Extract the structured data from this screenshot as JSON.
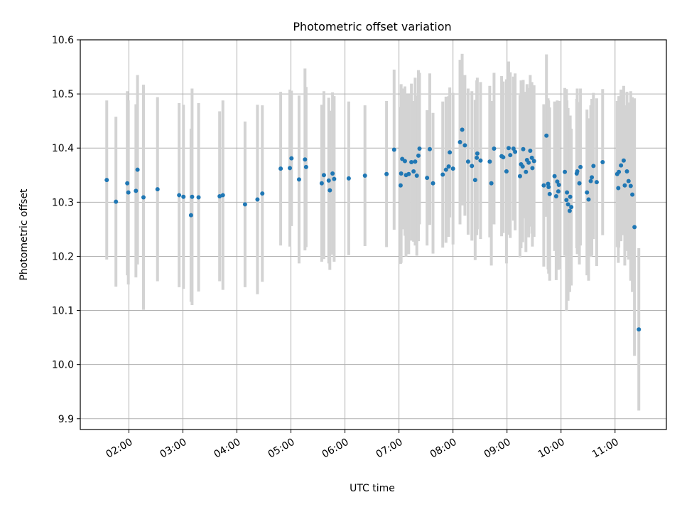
{
  "chart_data": {
    "type": "scatter",
    "title": "Photometric offset variation",
    "xlabel": "UTC time",
    "ylabel": "Photometric offset",
    "x_unit": "hours UTC",
    "xlim": [
      1.1,
      11.95
    ],
    "ylim": [
      9.88,
      10.6
    ],
    "grid": true,
    "legend": "none",
    "colors": {
      "points": "#1f77b4",
      "errorbars": "#d3d3d3",
      "grid": "#b0b0b0"
    },
    "x_ticks": [
      {
        "value": 2,
        "label": "02:00"
      },
      {
        "value": 3,
        "label": "03:00"
      },
      {
        "value": 4,
        "label": "04:00"
      },
      {
        "value": 5,
        "label": "05:00"
      },
      {
        "value": 6,
        "label": "06:00"
      },
      {
        "value": 7,
        "label": "07:00"
      },
      {
        "value": 8,
        "label": "08:00"
      },
      {
        "value": 9,
        "label": "09:00"
      },
      {
        "value": 10,
        "label": "10:00"
      },
      {
        "value": 11,
        "label": "11:00"
      }
    ],
    "y_ticks": [
      {
        "value": 9.9,
        "label": "9.9"
      },
      {
        "value": 10.0,
        "label": "10.0"
      },
      {
        "value": 10.1,
        "label": "10.1"
      },
      {
        "value": 10.2,
        "label": "10.2"
      },
      {
        "value": 10.3,
        "label": "10.3"
      },
      {
        "value": 10.4,
        "label": "10.4"
      },
      {
        "value": 10.5,
        "label": "10.5"
      },
      {
        "value": 10.6,
        "label": "10.6"
      }
    ],
    "points": [
      [
        1.59,
        10.341,
        0.147
      ],
      [
        1.76,
        10.301,
        0.157
      ],
      [
        1.97,
        10.335,
        0.17
      ],
      [
        1.99,
        10.318,
        0.17
      ],
      [
        2.13,
        10.321,
        0.16
      ],
      [
        2.16,
        10.36,
        0.175
      ],
      [
        2.27,
        10.309,
        0.208
      ],
      [
        2.53,
        10.324,
        0.17
      ],
      [
        2.93,
        10.313,
        0.17
      ],
      [
        3.01,
        10.31,
        0.17
      ],
      [
        3.15,
        10.276,
        0.16
      ],
      [
        3.17,
        10.31,
        0.2
      ],
      [
        3.29,
        10.309,
        0.174
      ],
      [
        3.68,
        10.311,
        0.157
      ],
      [
        3.74,
        10.313,
        0.175
      ],
      [
        4.15,
        10.296,
        0.153
      ],
      [
        4.38,
        10.305,
        0.175
      ],
      [
        4.47,
        10.316,
        0.163
      ],
      [
        4.81,
        10.362,
        0.142
      ],
      [
        4.98,
        10.363,
        0.145
      ],
      [
        5.01,
        10.381,
        0.125
      ],
      [
        5.15,
        10.342,
        0.155
      ],
      [
        5.26,
        10.379,
        0.168
      ],
      [
        5.28,
        10.365,
        0.148
      ],
      [
        5.57,
        10.335,
        0.145
      ],
      [
        5.61,
        10.35,
        0.155
      ],
      [
        5.7,
        10.34,
        0.153
      ],
      [
        5.72,
        10.322,
        0.147
      ],
      [
        5.77,
        10.353,
        0.15
      ],
      [
        5.8,
        10.343,
        0.153
      ],
      [
        6.07,
        10.344,
        0.142
      ],
      [
        6.37,
        10.349,
        0.13
      ],
      [
        6.77,
        10.352,
        0.135
      ],
      [
        6.91,
        10.397,
        0.148
      ],
      [
        7.03,
        10.331,
        0.145
      ],
      [
        7.06,
        10.38,
        0.13
      ],
      [
        7.04,
        10.353,
        0.165
      ],
      [
        7.13,
        10.35,
        0.15
      ],
      [
        7.11,
        10.376,
        0.138
      ],
      [
        7.18,
        10.352,
        0.148
      ],
      [
        7.23,
        10.374,
        0.145
      ],
      [
        7.27,
        10.357,
        0.13
      ],
      [
        7.3,
        10.375,
        0.155
      ],
      [
        7.33,
        10.349,
        0.148
      ],
      [
        7.38,
        10.399,
        0.14
      ],
      [
        7.36,
        10.386,
        0.158
      ],
      [
        7.52,
        10.345,
        0.125
      ],
      [
        7.57,
        10.398,
        0.14
      ],
      [
        7.63,
        10.335,
        0.13
      ],
      [
        7.81,
        10.351,
        0.135
      ],
      [
        7.87,
        10.36,
        0.135
      ],
      [
        7.92,
        10.366,
        0.13
      ],
      [
        7.94,
        10.392,
        0.12
      ],
      [
        8.0,
        10.362,
        0.14
      ],
      [
        8.13,
        10.411,
        0.152
      ],
      [
        8.17,
        10.434,
        0.14
      ],
      [
        8.22,
        10.405,
        0.13
      ],
      [
        8.28,
        10.375,
        0.135
      ],
      [
        8.35,
        10.367,
        0.138
      ],
      [
        8.41,
        10.341,
        0.148
      ],
      [
        8.44,
        10.382,
        0.143
      ],
      [
        8.45,
        10.39,
        0.14
      ],
      [
        8.51,
        10.377,
        0.145
      ],
      [
        8.68,
        10.375,
        0.14
      ],
      [
        8.71,
        10.335,
        0.152
      ],
      [
        8.76,
        10.399,
        0.14
      ],
      [
        8.9,
        10.385,
        0.148
      ],
      [
        8.93,
        10.383,
        0.14
      ],
      [
        8.99,
        10.357,
        0.17
      ],
      [
        9.03,
        10.4,
        0.16
      ],
      [
        9.06,
        10.387,
        0.153
      ],
      [
        9.12,
        10.399,
        0.133
      ],
      [
        9.15,
        10.393,
        0.145
      ],
      [
        9.24,
        10.348,
        0.15
      ],
      [
        9.26,
        10.37,
        0.155
      ],
      [
        9.29,
        10.366,
        0.14
      ],
      [
        9.3,
        10.398,
        0.128
      ],
      [
        9.35,
        10.356,
        0.148
      ],
      [
        9.37,
        10.378,
        0.14
      ],
      [
        9.4,
        10.373,
        0.138
      ],
      [
        9.43,
        10.395,
        0.14
      ],
      [
        9.46,
        10.382,
        0.14
      ],
      [
        9.47,
        10.363,
        0.145
      ],
      [
        9.5,
        10.376,
        0.14
      ],
      [
        9.68,
        10.331,
        0.15
      ],
      [
        9.73,
        10.423,
        0.15
      ],
      [
        9.76,
        10.334,
        0.158
      ],
      [
        9.79,
        10.315,
        0.16
      ],
      [
        9.77,
        10.328,
        0.16
      ],
      [
        9.88,
        10.348,
        0.138
      ],
      [
        9.91,
        10.311,
        0.155
      ],
      [
        9.93,
        10.338,
        0.15
      ],
      [
        9.95,
        10.32,
        0.145
      ],
      [
        9.96,
        10.332,
        0.155
      ],
      [
        10.07,
        10.356,
        0.155
      ],
      [
        10.1,
        10.304,
        0.205
      ],
      [
        10.11,
        10.318,
        0.17
      ],
      [
        10.13,
        10.296,
        0.178
      ],
      [
        10.16,
        10.284,
        0.15
      ],
      [
        10.17,
        10.31,
        0.15
      ],
      [
        10.19,
        10.291,
        0.145
      ],
      [
        10.29,
        10.353,
        0.138
      ],
      [
        10.3,
        10.357,
        0.153
      ],
      [
        10.34,
        10.335,
        0.15
      ],
      [
        10.36,
        10.365,
        0.145
      ],
      [
        10.48,
        10.318,
        0.153
      ],
      [
        10.51,
        10.305,
        0.15
      ],
      [
        10.55,
        10.339,
        0.14
      ],
      [
        10.57,
        10.346,
        0.145
      ],
      [
        10.6,
        10.367,
        0.135
      ],
      [
        10.66,
        10.337,
        0.155
      ],
      [
        10.77,
        10.374,
        0.135
      ],
      [
        11.04,
        10.352,
        0.135
      ],
      [
        11.06,
        10.326,
        0.138
      ],
      [
        11.07,
        10.356,
        0.14
      ],
      [
        11.11,
        10.368,
        0.14
      ],
      [
        11.16,
        10.377,
        0.138
      ],
      [
        11.18,
        10.331,
        0.148
      ],
      [
        11.22,
        10.357,
        0.147
      ],
      [
        11.25,
        10.339,
        0.145
      ],
      [
        11.29,
        10.33,
        0.175
      ],
      [
        11.32,
        10.314,
        0.18
      ],
      [
        11.36,
        10.254,
        0.238
      ],
      [
        11.44,
        10.065,
        0.15
      ]
    ]
  }
}
